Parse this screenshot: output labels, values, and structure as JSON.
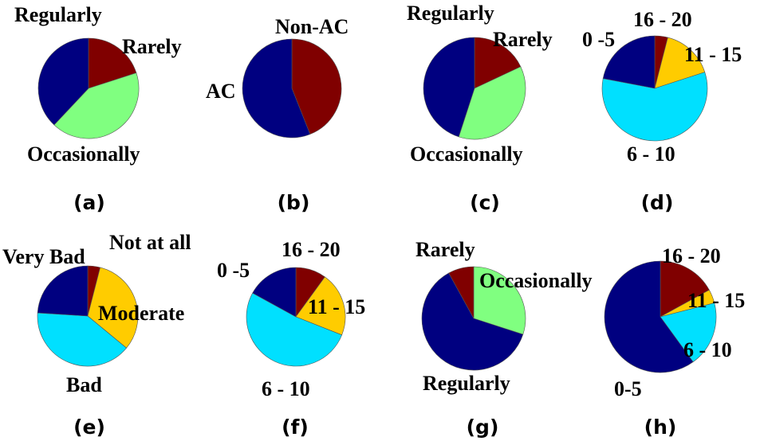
{
  "colors": {
    "navy": "#000080",
    "maroon": "#800000",
    "light_green": "#80ff80",
    "cyan": "#00e0ff",
    "yellow": "#ffcc00"
  },
  "chart_data": [
    {
      "type": "pie",
      "panel": "(a)",
      "slices": [
        {
          "label": "Rarely",
          "value": 20,
          "color": "#800000"
        },
        {
          "label": "Occasionally",
          "value": 42,
          "color": "#80ff80"
        },
        {
          "label": "Regularly",
          "value": 38,
          "color": "#000080"
        }
      ]
    },
    {
      "type": "pie",
      "panel": "(b)",
      "slices": [
        {
          "label": "Non-AC",
          "value": 44,
          "color": "#800000"
        },
        {
          "label": "AC",
          "value": 56,
          "color": "#000080"
        }
      ]
    },
    {
      "type": "pie",
      "panel": "(c)",
      "slices": [
        {
          "label": "Rarely",
          "value": 18,
          "color": "#800000"
        },
        {
          "label": "Occasionally",
          "value": 37,
          "color": "#80ff80"
        },
        {
          "label": "Regularly",
          "value": 45,
          "color": "#000080"
        }
      ]
    },
    {
      "type": "pie",
      "panel": "(d)",
      "slices": [
        {
          "label": "16 - 20",
          "value": 4,
          "color": "#800000"
        },
        {
          "label": "11 - 15",
          "value": 16,
          "color": "#ffcc00"
        },
        {
          "label": "6 - 10",
          "value": 58,
          "color": "#00e0ff"
        },
        {
          "label": "0 -5",
          "value": 22,
          "color": "#000080"
        }
      ]
    },
    {
      "type": "pie",
      "panel": "(e)",
      "slices": [
        {
          "label": "Not at all",
          "value": 4,
          "color": "#800000"
        },
        {
          "label": "Moderate",
          "value": 32,
          "color": "#ffcc00"
        },
        {
          "label": "Bad",
          "value": 40,
          "color": "#00e0ff"
        },
        {
          "label": "Very Bad",
          "value": 24,
          "color": "#000080"
        }
      ]
    },
    {
      "type": "pie",
      "panel": "(f)",
      "slices": [
        {
          "label": "16 - 20",
          "value": 10,
          "color": "#800000"
        },
        {
          "label": "11 - 15",
          "value": 21,
          "color": "#ffcc00"
        },
        {
          "label": "6 - 10",
          "value": 52,
          "color": "#00e0ff"
        },
        {
          "label": "0 -5",
          "value": 17,
          "color": "#000080"
        }
      ]
    },
    {
      "type": "pie",
      "panel": "(g)",
      "slices": [
        {
          "label": "Occasionally",
          "value": 30,
          "color": "#80ff80"
        },
        {
          "label": "Regularly",
          "value": 62,
          "color": "#000080"
        },
        {
          "label": "Rarely",
          "value": 8,
          "color": "#800000"
        }
      ]
    },
    {
      "type": "pie",
      "panel": "(h)",
      "slices": [
        {
          "label": "16 - 20",
          "value": 17,
          "color": "#800000"
        },
        {
          "label": "11 - 15",
          "value": 4,
          "color": "#ffcc00"
        },
        {
          "label": "6 - 10",
          "value": 19,
          "color": "#00e0ff"
        },
        {
          "label": "0-5",
          "value": 60,
          "color": "#000080"
        }
      ]
    }
  ]
}
